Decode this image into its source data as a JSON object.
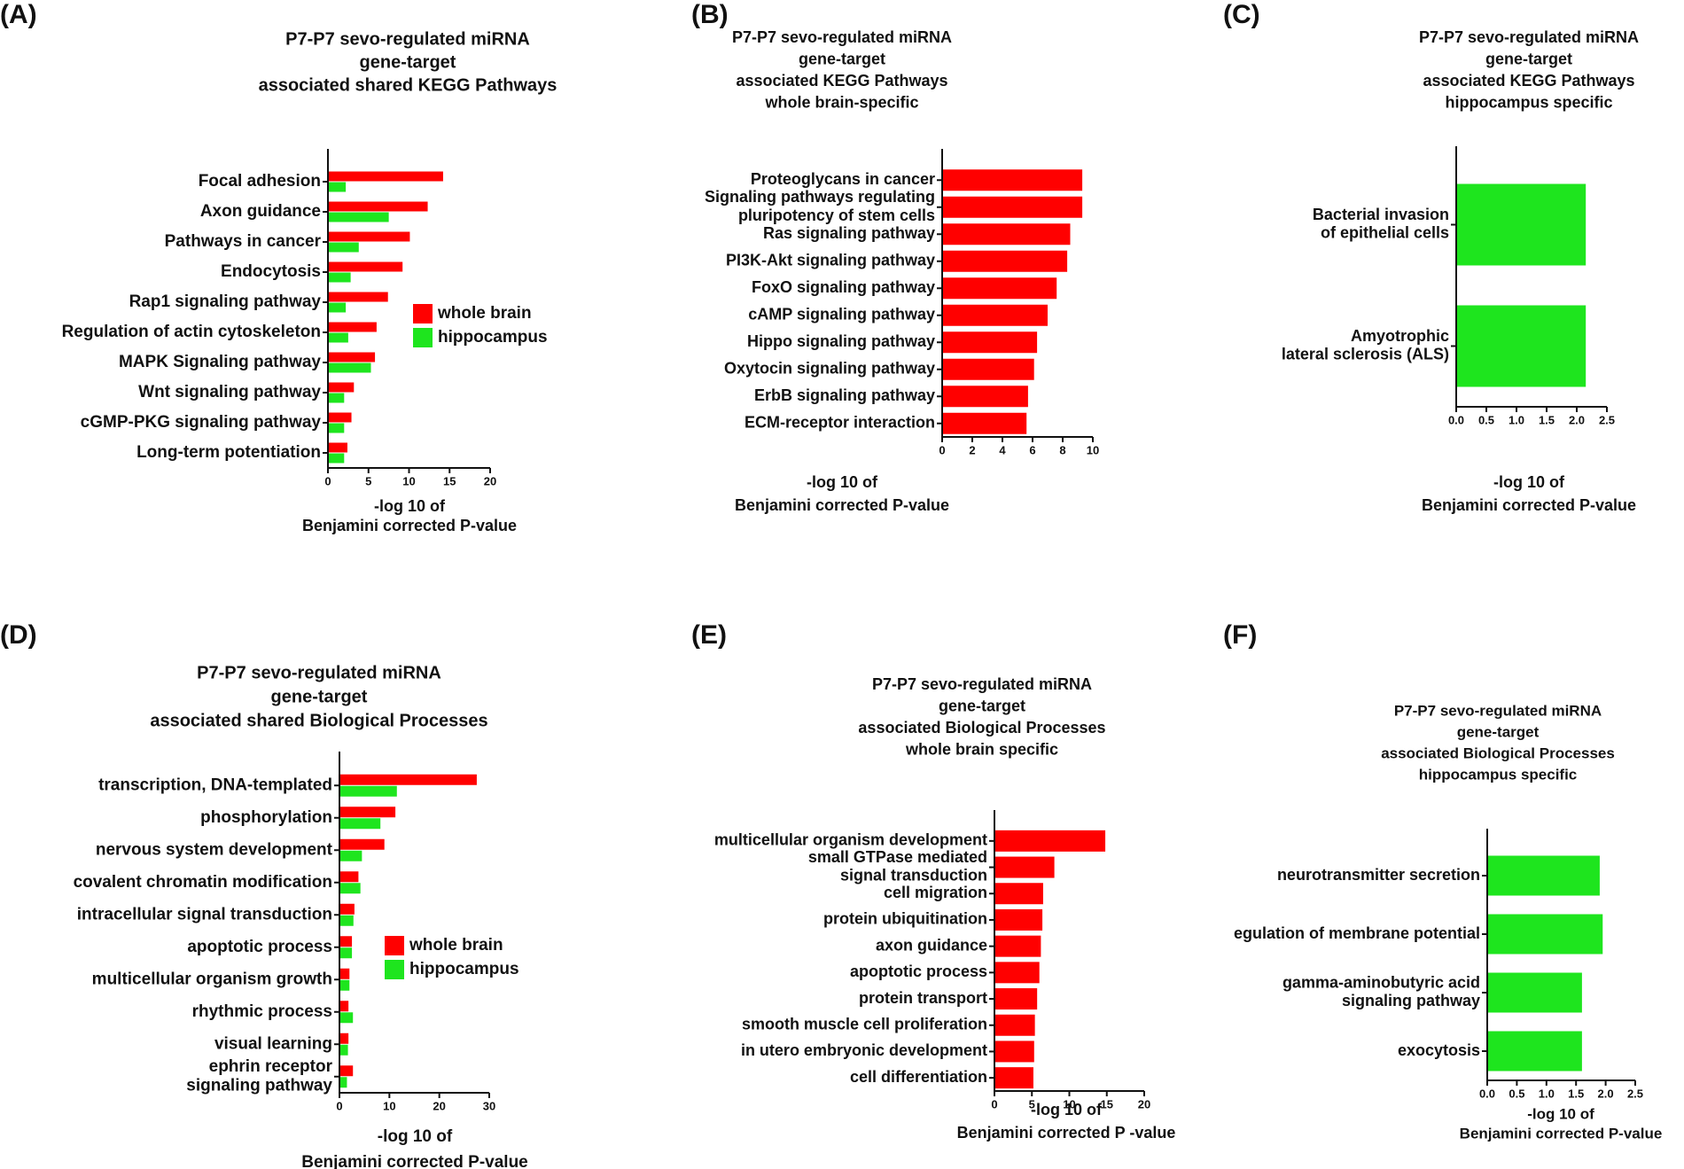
{
  "colors": {
    "whole_brain": "#ff0000",
    "hippocampus": "#1ee51e"
  },
  "panels": [
    {
      "letter": "(A)"
    },
    {
      "letter": "(B)"
    },
    {
      "letter": "(C)"
    },
    {
      "letter": "(D)"
    },
    {
      "letter": "(E)"
    },
    {
      "letter": "(F)"
    }
  ],
  "chart_data": [
    {
      "id": "A",
      "type": "bar",
      "orientation": "horizontal",
      "title": [
        "P7-P7  sevo-regulated miRNA",
        "gene-target",
        "associated shared KEGG Pathways"
      ],
      "xlabel": [
        "-log 10 of",
        "Benjamini corrected P-value"
      ],
      "xlim": [
        0,
        20
      ],
      "xticks": [
        0,
        5,
        10,
        15,
        20
      ],
      "categories": [
        [
          "Focal adhesion"
        ],
        [
          "Axon guidance"
        ],
        [
          "Pathways in cancer"
        ],
        [
          "Endocytosis"
        ],
        [
          "Rap1 signaling pathway"
        ],
        [
          "Regulation of actin cytoskeleton"
        ],
        [
          "MAPK Signaling pathway"
        ],
        [
          "Wnt signaling pathway"
        ],
        [
          "cGMP-PKG signaling pathway"
        ],
        [
          "Long-term potentiation"
        ]
      ],
      "series": [
        {
          "name": "whole brain",
          "color": "#ff0000",
          "values": [
            14.2,
            12.3,
            10.1,
            9.2,
            7.4,
            6.0,
            5.8,
            3.2,
            2.9,
            2.4
          ]
        },
        {
          "name": "hippocampus",
          "color": "#1ee51e",
          "values": [
            2.2,
            7.5,
            3.8,
            2.8,
            2.2,
            2.5,
            5.3,
            2.0,
            2.0,
            2.0
          ]
        }
      ],
      "legend": "right"
    },
    {
      "id": "B",
      "type": "bar",
      "orientation": "horizontal",
      "title": [
        "P7-P7  sevo-regulated miRNA",
        "gene-target",
        "associated KEGG Pathways",
        "whole brain-specific"
      ],
      "xlabel": [
        "-log 10 of",
        "Benjamini corrected P-value"
      ],
      "xlim": [
        0,
        10
      ],
      "xticks": [
        0,
        2,
        4,
        6,
        8,
        10
      ],
      "categories": [
        [
          "Proteoglycans in cancer"
        ],
        [
          "Signaling pathways regulating",
          "pluripotency of stem cells"
        ],
        [
          "Ras signaling pathway"
        ],
        [
          "PI3K-Akt signaling pathway"
        ],
        [
          "FoxO signaling pathway"
        ],
        [
          "cAMP signaling pathway"
        ],
        [
          "Hippo signaling pathway"
        ],
        [
          "Oxytocin signaling pathway"
        ],
        [
          "ErbB signaling pathway"
        ],
        [
          "ECM-receptor interaction"
        ]
      ],
      "series": [
        {
          "name": "",
          "color": "#ff0000",
          "values": [
            9.3,
            9.3,
            8.5,
            8.3,
            7.6,
            7.0,
            6.3,
            6.1,
            5.7,
            5.6
          ]
        }
      ]
    },
    {
      "id": "C",
      "type": "bar",
      "orientation": "horizontal",
      "title": [
        "P7-P7 sevo-regulated miRNA",
        "gene-target",
        "associated KEGG Pathways",
        "hippocampus specific"
      ],
      "xlabel": [
        "-log 10 of",
        "Benjamini corrected P-value"
      ],
      "xlim": [
        0,
        2.5
      ],
      "xticks": [
        "0.0",
        "0.5",
        "1.0",
        "1.5",
        "2.0",
        "2.5"
      ],
      "categories": [
        [
          "Bacterial invasion",
          "of epithelial cells"
        ],
        [
          "Amyotrophic",
          "lateral sclerosis (ALS)"
        ]
      ],
      "series": [
        {
          "name": "",
          "color": "#1ee51e",
          "values": [
            2.15,
            2.15
          ]
        }
      ]
    },
    {
      "id": "D",
      "type": "bar",
      "orientation": "horizontal",
      "title": [
        "P7-P7 sevo-regulated miRNA",
        "gene-target",
        "associated shared Biological Processes"
      ],
      "xlabel": [
        "-log 10 of",
        "Benjamini corrected P-value"
      ],
      "xlim": [
        0,
        30
      ],
      "xticks": [
        0,
        10,
        20,
        30
      ],
      "categories": [
        [
          "transcription, DNA-templated"
        ],
        [
          "phosphorylation"
        ],
        [
          "nervous system development"
        ],
        [
          "covalent chromatin modification"
        ],
        [
          "intracellular signal transduction"
        ],
        [
          "apoptotic process"
        ],
        [
          "multicellular organism growth"
        ],
        [
          "rhythmic process"
        ],
        [
          "visual learning"
        ],
        [
          "ephrin receptor",
          "signaling pathway"
        ]
      ],
      "series": [
        {
          "name": "whole brain",
          "color": "#ff0000",
          "values": [
            27.5,
            11.2,
            9.0,
            3.8,
            3.0,
            2.5,
            2.0,
            1.8,
            1.8,
            2.7
          ]
        },
        {
          "name": "hippocampus",
          "color": "#1ee51e",
          "values": [
            11.5,
            8.2,
            4.5,
            4.2,
            2.8,
            2.5,
            2.0,
            2.7,
            1.7,
            1.5
          ]
        }
      ],
      "legend": "right"
    },
    {
      "id": "E",
      "type": "bar",
      "orientation": "horizontal",
      "title": [
        "P7-P7 sevo-regulated miRNA",
        "gene-target",
        "associated Biological Processes",
        "whole brain specific"
      ],
      "xlabel": [
        "-log 10 of",
        "Benjamini corrected P -value"
      ],
      "xlim": [
        0,
        20
      ],
      "xticks": [
        0,
        5,
        10,
        15,
        20
      ],
      "categories": [
        [
          "multicellular organism development"
        ],
        [
          "small GTPase mediated",
          "signal transduction"
        ],
        [
          "cell migration"
        ],
        [
          "protein ubiquitination"
        ],
        [
          "axon guidance"
        ],
        [
          "apoptotic process"
        ],
        [
          "protein transport"
        ],
        [
          "smooth muscle cell proliferation"
        ],
        [
          "in utero embryonic development"
        ],
        [
          "cell differentiation"
        ]
      ],
      "series": [
        {
          "name": "",
          "color": "#ff0000",
          "values": [
            14.8,
            8.0,
            6.5,
            6.4,
            6.2,
            6.0,
            5.7,
            5.4,
            5.3,
            5.2
          ]
        }
      ]
    },
    {
      "id": "F",
      "type": "bar",
      "orientation": "horizontal",
      "title": [
        "P7-P7 sevo-regulated miRNA",
        "gene-target",
        "associated Biological Processes",
        "hippocampus specific"
      ],
      "xlabel": [
        "-log 10 of",
        "Benjamini corrected P-value"
      ],
      "xlim": [
        0,
        2.5
      ],
      "xticks": [
        "0.0",
        "0.5",
        "1.0",
        "1.5",
        "2.0",
        "2.5"
      ],
      "categories": [
        [
          "neurotransmitter secretion"
        ],
        [
          "egulation of membrane potential"
        ],
        [
          "gamma-aminobutyric acid",
          "signaling pathway"
        ],
        [
          "exocytosis"
        ]
      ],
      "series": [
        {
          "name": "",
          "color": "#1ee51e",
          "values": [
            1.9,
            1.95,
            1.6,
            1.6
          ]
        }
      ]
    }
  ]
}
